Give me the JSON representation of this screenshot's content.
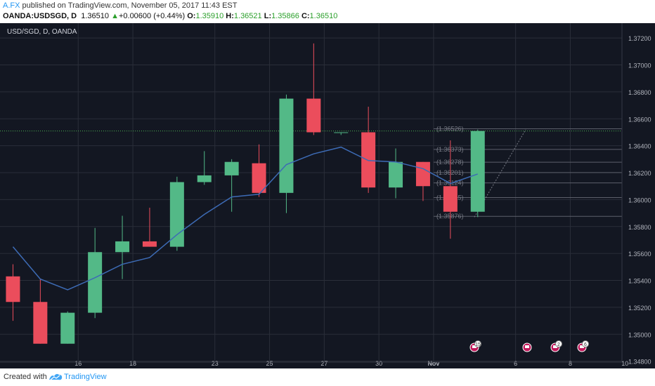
{
  "header": {
    "author": "A.FX",
    "published": "published on TradingView.com, November 05, 2017 11:43 EST",
    "symbol": "OANDA:USDSGD, D",
    "last": "1.36510",
    "change_arrow": "▲",
    "change": "+0.00600 (+0.44%)",
    "o_label": "O:",
    "o_val": "1.35910",
    "h_label": "H:",
    "h_val": "1.36521",
    "l_label": "L:",
    "l_val": "1.35866",
    "c_label": "C:",
    "c_val": "1.36510"
  },
  "chart_title": "USD/SGD, D, OANDA",
  "footer": {
    "created": "Created with",
    "brand": "TradingView"
  },
  "colors": {
    "background": "#131722",
    "up": "#53b987",
    "down": "#eb4d5c",
    "ma": "#3d6bb5",
    "grid": "#2a2e39",
    "last_line": "#4caf50"
  },
  "events": [
    {
      "label": "15",
      "icon": "us-flag-icon"
    },
    {
      "label": "",
      "icon": "us-flag-icon"
    },
    {
      "label": "2",
      "icon": "us-flag-icon"
    },
    {
      "label": "6",
      "icon": "us-flag-icon"
    }
  ],
  "chart_data": {
    "type": "candlestick",
    "title": "USD/SGD, D, OANDA",
    "ylim": [
      1.3484,
      1.373
    ],
    "y_ticks": [
      "1.37200",
      "1.37000",
      "1.36800",
      "1.36600",
      "1.36400",
      "1.36200",
      "1.36000",
      "1.35800",
      "1.35600",
      "1.35400",
      "1.35200",
      "1.35000",
      "1.34800"
    ],
    "x_ticks": [
      {
        "label": "16",
        "i": 2
      },
      {
        "label": "18",
        "i": 4
      },
      {
        "label": "23",
        "i": 7
      },
      {
        "label": "25",
        "i": 9
      },
      {
        "label": "27",
        "i": 11
      },
      {
        "label": "30",
        "i": 13
      },
      {
        "label": "Nov",
        "i": 15
      },
      {
        "label": "6",
        "i": 18
      },
      {
        "label": "8",
        "i": 20
      },
      {
        "label": "10",
        "i": 22
      }
    ],
    "grid": true,
    "candles": [
      {
        "o": 1.3543,
        "h": 1.3552,
        "l": 1.351,
        "c": 1.3524
      },
      {
        "o": 1.3524,
        "h": 1.3541,
        "l": 1.3493,
        "c": 1.3493
      },
      {
        "o": 1.3493,
        "h": 1.3517,
        "l": 1.3493,
        "c": 1.3516
      },
      {
        "o": 1.3516,
        "h": 1.3579,
        "l": 1.3512,
        "c": 1.3561
      },
      {
        "o": 1.3561,
        "h": 1.3588,
        "l": 1.3541,
        "c": 1.3569
      },
      {
        "o": 1.3569,
        "h": 1.3594,
        "l": 1.3565,
        "c": 1.3565
      },
      {
        "o": 1.3565,
        "h": 1.3617,
        "l": 1.3562,
        "c": 1.3613
      },
      {
        "o": 1.3613,
        "h": 1.3636,
        "l": 1.3611,
        "c": 1.3618
      },
      {
        "o": 1.3618,
        "h": 1.363,
        "l": 1.3591,
        "c": 1.3628
      },
      {
        "o": 1.3627,
        "h": 1.3641,
        "l": 1.3602,
        "c": 1.3605
      },
      {
        "o": 1.3605,
        "h": 1.3678,
        "l": 1.359,
        "c": 1.3675
      },
      {
        "o": 1.3675,
        "h": 1.3716,
        "l": 1.3648,
        "c": 1.365
      },
      {
        "o": 1.365,
        "h": 1.365,
        "l": 1.3648,
        "c": 1.365
      },
      {
        "o": 1.365,
        "h": 1.3669,
        "l": 1.3605,
        "c": 1.3609
      },
      {
        "o": 1.3609,
        "h": 1.3638,
        "l": 1.3601,
        "c": 1.3628
      },
      {
        "o": 1.3628,
        "h": 1.3628,
        "l": 1.3599,
        "c": 1.361
      },
      {
        "o": 1.361,
        "h": 1.3644,
        "l": 1.3571,
        "c": 1.3591
      },
      {
        "o": 1.3591,
        "h": 1.3652,
        "l": 1.3587,
        "c": 1.3651
      }
    ],
    "ma_series": {
      "color": "#3d6bb5",
      "values": [
        1.3565,
        1.3541,
        1.3533,
        1.3542,
        1.3552,
        1.3557,
        1.3574,
        1.3589,
        1.3602,
        1.3604,
        1.3626,
        1.3634,
        1.3639,
        1.3629,
        1.3628,
        1.3623,
        1.3612,
        1.3619
      ]
    },
    "fib_levels": [
      {
        "label": "(1.36526)",
        "value": 1.36526
      },
      {
        "label": "(1.36373)",
        "value": 1.36373
      },
      {
        "label": "(1.36278)",
        "value": 1.36278
      },
      {
        "label": "(1.36201)",
        "value": 1.36201
      },
      {
        "label": "(1.36124)",
        "value": 1.36124
      },
      {
        "label": "(1.36015)",
        "value": 1.36015
      },
      {
        "label": "(1.35876)",
        "value": 1.35876
      }
    ],
    "last_price": 1.3651
  }
}
